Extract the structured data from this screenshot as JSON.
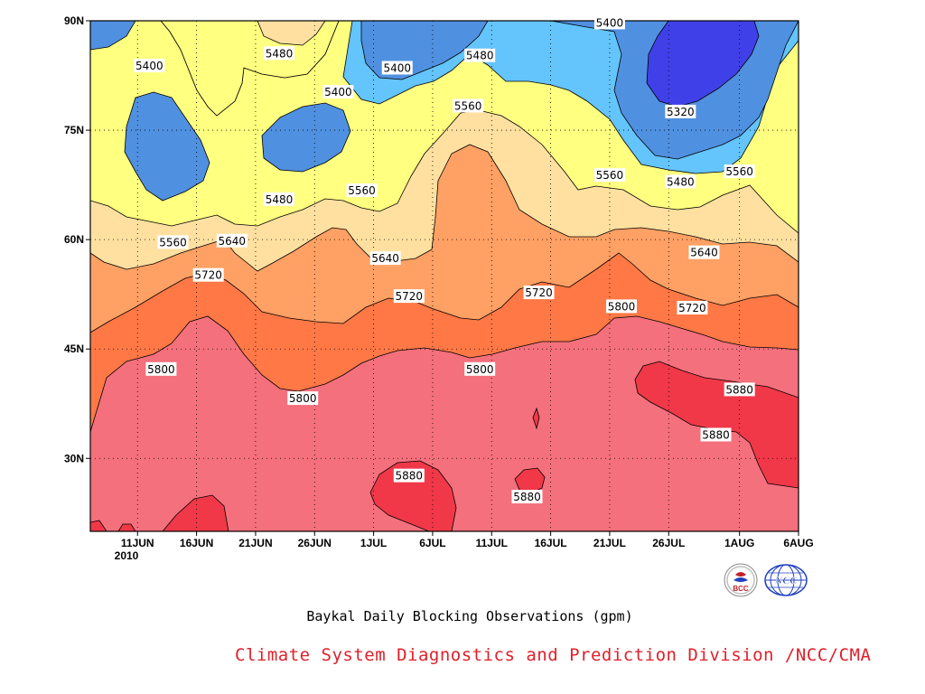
{
  "chart_data": {
    "type": "contour",
    "title": "",
    "caption": "Baykal Daily Blocking Observations (gpm)",
    "x_tick_labels": [
      "11JUN",
      "16JUN",
      "21JUN",
      "26JUN",
      "1JUL",
      "6JUL",
      "11JUL",
      "16JUL",
      "21JUL",
      "26JUL",
      "1AUG",
      "6AUG"
    ],
    "x_year_label": "2010",
    "y_tick_labels": [
      "30N",
      "45N",
      "60N",
      "75N",
      "90N"
    ],
    "xlim": [
      "2010-06-07",
      "2010-08-06"
    ],
    "ylim": [
      20,
      90
    ],
    "grid": true,
    "contour_levels": [
      5320,
      5400,
      5480,
      5560,
      5640,
      5720,
      5800,
      5880
    ],
    "fill_colors": {
      "below_5320": "#4040e8",
      "5320_5400": "#5090e0",
      "5400_5480": "#64c4fc",
      "5480_5560": "#ffff80",
      "5560_5640": "#ffe0a0",
      "5640_5720": "#ffa064",
      "5720_5800": "#ff7846",
      "5800_5880": "#f4707c",
      "above_5880": "#f03848"
    },
    "contour_labels": [
      {
        "text": "5400",
        "date": "2010-06-12",
        "lat": 83.8
      },
      {
        "text": "5480",
        "date": "2010-06-23",
        "lat": 85.5
      },
      {
        "text": "5400",
        "date": "2010-07-03",
        "lat": 83.5
      },
      {
        "text": "5400",
        "date": "2010-06-28",
        "lat": 80.2
      },
      {
        "text": "5480",
        "date": "2010-07-10",
        "lat": 85.2
      },
      {
        "text": "5400",
        "date": "2010-07-21",
        "lat": 89.7
      },
      {
        "text": "5560",
        "date": "2010-07-09",
        "lat": 78.3
      },
      {
        "text": "5320",
        "date": "2010-07-27",
        "lat": 77.5
      },
      {
        "text": "5560",
        "date": "2010-07-21",
        "lat": 68.8
      },
      {
        "text": "5480",
        "date": "2010-07-27",
        "lat": 67.9
      },
      {
        "text": "5560",
        "date": "2010-08-01",
        "lat": 69.3
      },
      {
        "text": "5480",
        "date": "2010-06-23",
        "lat": 65.5
      },
      {
        "text": "5560",
        "date": "2010-06-30",
        "lat": 66.7
      },
      {
        "text": "5560",
        "date": "2010-06-14",
        "lat": 59.6
      },
      {
        "text": "5640",
        "date": "2010-06-19",
        "lat": 59.8
      },
      {
        "text": "5640",
        "date": "2010-07-02",
        "lat": 57.4
      },
      {
        "text": "5720",
        "date": "2010-06-17",
        "lat": 55.1
      },
      {
        "text": "5720",
        "date": "2010-07-04",
        "lat": 52.2
      },
      {
        "text": "5720",
        "date": "2010-07-15",
        "lat": 52.7
      },
      {
        "text": "5800",
        "date": "2010-07-22",
        "lat": 50.8
      },
      {
        "text": "5720",
        "date": "2010-07-28",
        "lat": 50.6
      },
      {
        "text": "5640",
        "date": "2010-07-29",
        "lat": 58.2
      },
      {
        "text": "5800",
        "date": "2010-06-13",
        "lat": 42.2
      },
      {
        "text": "5800",
        "date": "2010-06-25",
        "lat": 38.2
      },
      {
        "text": "5800",
        "date": "2010-07-10",
        "lat": 42.2
      },
      {
        "text": "5880",
        "date": "2010-07-04",
        "lat": 27.6
      },
      {
        "text": "5880",
        "date": "2010-07-14",
        "lat": 24.7
      },
      {
        "text": "5880",
        "date": "2010-07-30",
        "lat": 33.2
      },
      {
        "text": "5880",
        "date": "2010-08-01",
        "lat": 39.4
      }
    ]
  },
  "caption": "Baykal Daily Blocking Observations (gpm)",
  "footer": "Climate System Diagnostics and Prediction Division /NCC/CMA",
  "logos": {
    "bcc": {
      "text": "BCC",
      "icon": "bcc-logo-icon",
      "color": "#c0202a"
    },
    "ncc": {
      "text": "NCC",
      "icon": "ncc-logo-icon",
      "color": "#2040c0"
    }
  }
}
